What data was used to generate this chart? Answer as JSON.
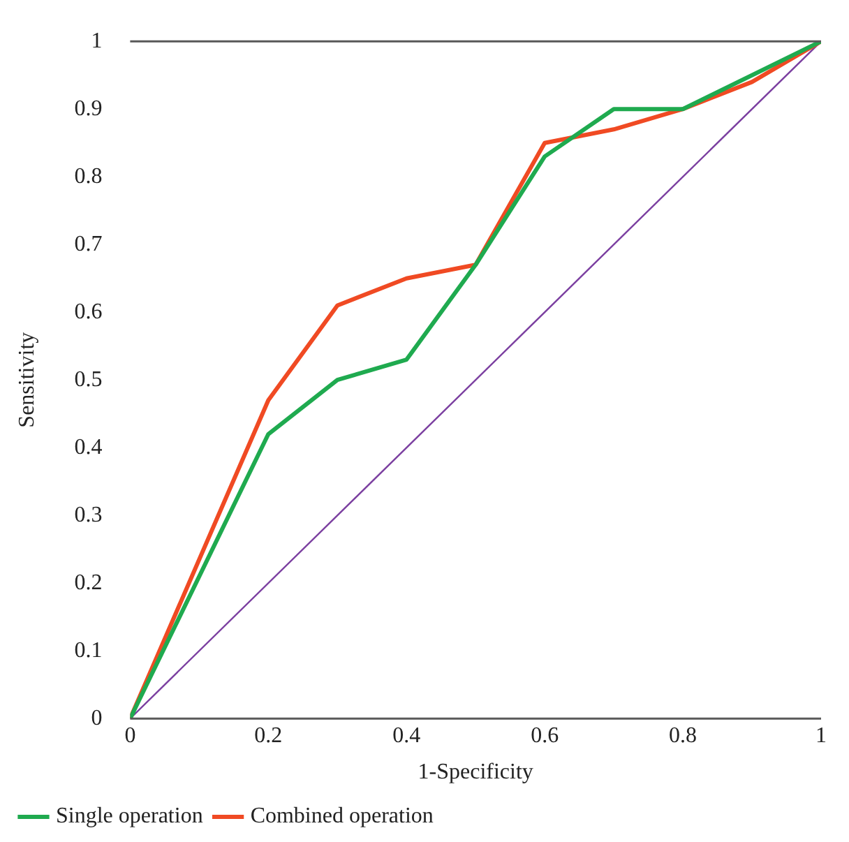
{
  "chart_data": {
    "type": "line",
    "xlabel": "1-Specificity",
    "ylabel": "Sensitivity",
    "xlim": [
      0,
      1
    ],
    "ylim": [
      0,
      1
    ],
    "xticks": [
      0,
      0.2,
      0.4,
      0.6,
      0.8,
      1
    ],
    "yticks": [
      0,
      0.1,
      0.2,
      0.3,
      0.4,
      0.5,
      0.6,
      0.7,
      0.8,
      0.9,
      1
    ],
    "grid": false,
    "legend": "bottom",
    "marker": "none",
    "line_style": "solid",
    "series": [
      {
        "name": "Single operation",
        "color": "#1faa4f",
        "x": [
          0,
          0.2,
          0.3,
          0.4,
          0.5,
          0.6,
          0.7,
          0.8,
          0.9,
          1
        ],
        "values": [
          0,
          0.42,
          0.5,
          0.53,
          0.67,
          0.83,
          0.9,
          0.9,
          0.95,
          1
        ]
      },
      {
        "name": "Combined operation",
        "color": "#f04a23",
        "x": [
          0,
          0.2,
          0.3,
          0.4,
          0.5,
          0.6,
          0.7,
          0.8,
          0.9,
          1
        ],
        "values": [
          0,
          0.47,
          0.61,
          0.65,
          0.67,
          0.85,
          0.87,
          0.9,
          0.94,
          1
        ]
      },
      {
        "color": "#7b3fa0",
        "x": [
          0,
          1
        ],
        "values": [
          0,
          1
        ]
      }
    ]
  }
}
